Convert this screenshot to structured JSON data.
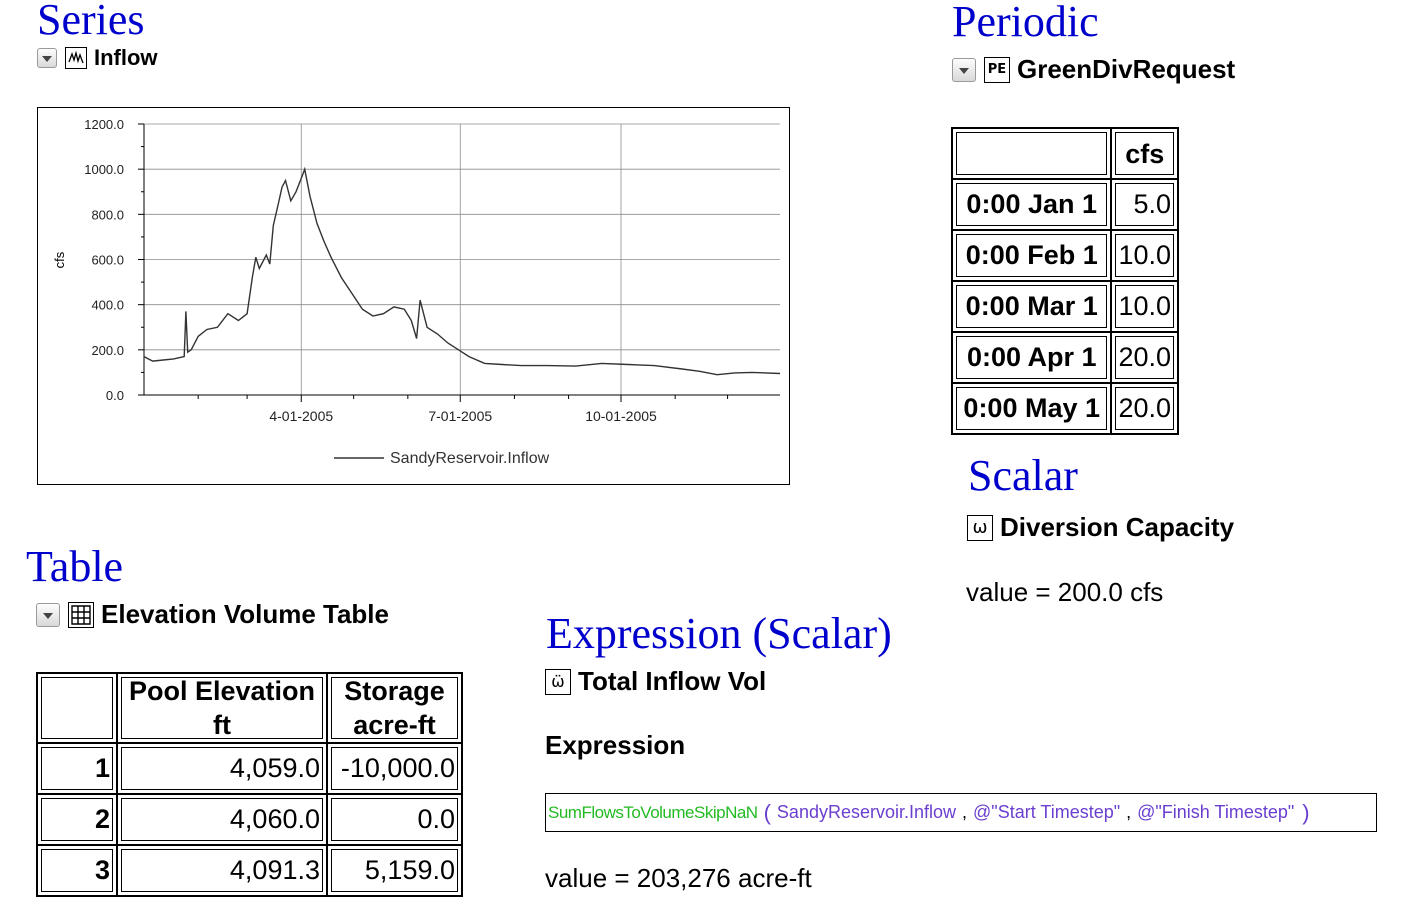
{
  "series_section": {
    "heading": "Series",
    "slot_name": "Inflow",
    "chart_data": {
      "type": "line",
      "ylabel": "cfs",
      "ylim": [
        0,
        1200
      ],
      "y_ticks": [
        "1200.0",
        "1000.0",
        "800.0",
        "600.0",
        "400.0",
        "200.0",
        "0.0"
      ],
      "x_tick_labels": [
        "4-01-2005",
        "7-01-2005",
        "10-01-2005"
      ],
      "x_domain": [
        "2005-01-01",
        "2005-12-31"
      ],
      "grid": true,
      "legend": "SandyReservoir.Inflow",
      "legend_position": "bottom",
      "series": [
        {
          "name": "SandyReservoir.Inflow",
          "x": [
            "2005-01-01",
            "2005-01-06",
            "2005-01-12",
            "2005-01-18",
            "2005-01-24",
            "2005-01-25",
            "2005-01-26",
            "2005-01-28",
            "2005-02-01",
            "2005-02-06",
            "2005-02-12",
            "2005-02-18",
            "2005-02-24",
            "2005-03-01",
            "2005-03-04",
            "2005-03-06",
            "2005-03-08",
            "2005-03-12",
            "2005-03-14",
            "2005-03-16",
            "2005-03-19",
            "2005-03-21",
            "2005-03-23",
            "2005-03-26",
            "2005-03-29",
            "2005-04-01",
            "2005-04-03",
            "2005-04-06",
            "2005-04-10",
            "2005-04-14",
            "2005-04-18",
            "2005-04-24",
            "2005-04-30",
            "2005-05-06",
            "2005-05-12",
            "2005-05-18",
            "2005-05-24",
            "2005-05-30",
            "2005-06-03",
            "2005-06-06",
            "2005-06-08",
            "2005-06-12",
            "2005-06-18",
            "2005-06-24",
            "2005-06-30",
            "2005-07-06",
            "2005-07-15",
            "2005-07-25",
            "2005-08-05",
            "2005-08-20",
            "2005-09-05",
            "2005-09-20",
            "2005-10-05",
            "2005-10-20",
            "2005-11-05",
            "2005-11-15",
            "2005-11-25",
            "2005-12-05",
            "2005-12-15",
            "2005-12-31"
          ],
          "values": [
            170,
            150,
            155,
            160,
            170,
            370,
            190,
            200,
            260,
            290,
            300,
            360,
            330,
            360,
            520,
            610,
            560,
            620,
            580,
            750,
            850,
            920,
            950,
            860,
            900,
            960,
            1000,
            880,
            760,
            680,
            610,
            520,
            450,
            380,
            350,
            360,
            390,
            380,
            330,
            250,
            420,
            300,
            270,
            230,
            200,
            170,
            140,
            135,
            130,
            130,
            128,
            140,
            135,
            130,
            115,
            105,
            90,
            98,
            100,
            95
          ]
        }
      ]
    }
  },
  "periodic_section": {
    "heading": "Periodic",
    "slot_name": "GreenDivRequest",
    "column_header": "cfs",
    "rows": [
      {
        "label": "0:00 Jan 1",
        "value": "5.0"
      },
      {
        "label": "0:00 Feb 1",
        "value": "10.0"
      },
      {
        "label": "0:00 Mar 1",
        "value": "10.0"
      },
      {
        "label": "0:00 Apr 1",
        "value": "20.0"
      },
      {
        "label": "0:00 May 1",
        "value": "20.0"
      }
    ]
  },
  "scalar_section": {
    "heading": "Scalar",
    "slot_name": "Diversion Capacity",
    "value_text": "value = 200.0 cfs"
  },
  "table_section": {
    "heading": "Table",
    "slot_name": "Elevation Volume Table",
    "col1_header_line1": "Pool Elevation",
    "col1_header_line2": "ft",
    "col2_header_line1": "Storage",
    "col2_header_line2": "acre-ft",
    "rows": [
      {
        "n": "1",
        "elevation": "4,059.0",
        "storage": "-10,000.0"
      },
      {
        "n": "2",
        "elevation": "4,060.0",
        "storage": "0.0"
      },
      {
        "n": "3",
        "elevation": "4,091.3",
        "storage": "5,159.0"
      }
    ]
  },
  "expression_section": {
    "heading": "Expression (Scalar)",
    "slot_name": "Total Inflow Vol",
    "expression_label": "Expression",
    "expression": {
      "function": "SumFlowsToVolumeSkipNaN",
      "open_paren": "(",
      "arg1": "SandyReservoir.Inflow",
      "sep1": ",",
      "arg2": "@\"Start Timestep\"",
      "sep2": ",",
      "arg3": "@\"Finish Timestep\"",
      "close_paren": ")"
    },
    "value_text": "value = 203,276 acre-ft"
  },
  "colors": {
    "heading": "#0000cc",
    "function_green": "#22bb22",
    "argument_purple": "#6a3fd0",
    "series_line": "#333333",
    "grid": "#8c8c8c"
  }
}
